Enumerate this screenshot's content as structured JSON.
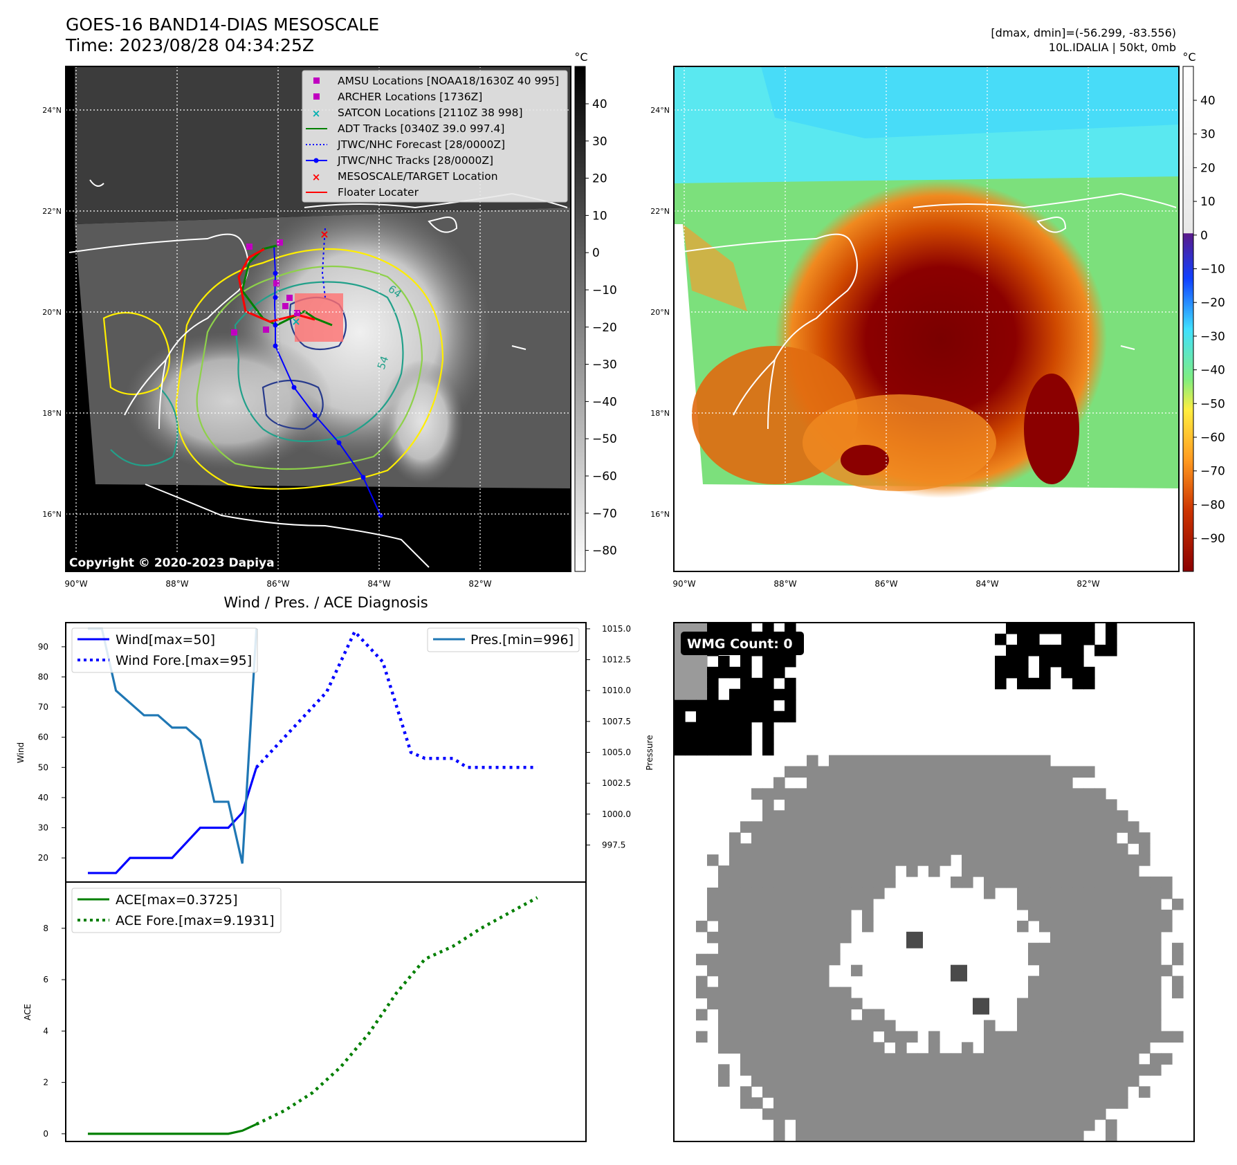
{
  "header": {
    "title": "GOES-16 BAND14-DIAS MESOSCALE",
    "time": "Time: 2023/08/28 04:34:25Z",
    "stats": "[dmax, dmin]=(-56.299, -83.556)",
    "storm": "10L.IDALIA | 50kt, 0mb"
  },
  "colors": {
    "amsu": "#c000c0",
    "archer": "#c000c0",
    "satcon": "#00b0b0",
    "adt": "#008000",
    "forecast": "#0000ff",
    "track": "#0000ff",
    "target": "#ff0000",
    "floater": "#ff0000",
    "wind": "#0000ff",
    "pressure": "#1f77b4",
    "ace": "#007f00"
  },
  "ir_panel": {
    "colorbar_unit": "°C",
    "colorbar_ticks": [
      40,
      30,
      20,
      10,
      0,
      -10,
      -20,
      -30,
      -40,
      -50,
      -60,
      -70,
      -80
    ],
    "lat_labels": [
      "24°N",
      "22°N",
      "20°N",
      "18°N",
      "16°N"
    ],
    "lon_labels": [
      "90°W",
      "88°W",
      "86°W",
      "84°W",
      "82°W"
    ],
    "copyright": "Copyright © 2020-2023 Dapiya",
    "contour_labels": [
      "64",
      "54"
    ],
    "legend": [
      {
        "label": "AMSU Locations [NOAA18/1630Z 40 995]",
        "marker": "square",
        "color_key": "amsu"
      },
      {
        "label": "ARCHER Locations [1736Z]",
        "marker": "square",
        "color_key": "archer"
      },
      {
        "label": "SATCON Locations [2110Z 38 998]",
        "marker": "x",
        "color_key": "satcon"
      },
      {
        "label": "ADT Tracks [0340Z 39.0 997.4]",
        "marker": "line",
        "color_key": "adt"
      },
      {
        "label": "JTWC/NHC Forecast [28/0000Z]",
        "marker": "dotted",
        "color_key": "forecast"
      },
      {
        "label": "JTWC/NHC Tracks [28/0000Z]",
        "marker": "line-dot",
        "color_key": "track"
      },
      {
        "label": "MESOSCALE/TARGET Location",
        "marker": "x",
        "color_key": "target"
      },
      {
        "label": "Floater Locater",
        "marker": "line",
        "color_key": "floater"
      }
    ]
  },
  "enhanced_panel": {
    "colorbar_unit": "°C",
    "colorbar_ticks": [
      40,
      30,
      20,
      10,
      0,
      -10,
      -20,
      -30,
      -40,
      -50,
      -60,
      -70,
      -80,
      -90
    ],
    "lat_labels": [
      "24°N",
      "22°N",
      "20°N",
      "18°N",
      "16°N"
    ],
    "lon_labels": [
      "90°W",
      "88°W",
      "86°W",
      "84°W",
      "82°W"
    ]
  },
  "wmg_panel": {
    "badge": "WMG Count: 0"
  },
  "chart_data": [
    {
      "type": "line",
      "title": "Wind / Pres. / ACE Diagnosis",
      "ylabel": "Wind",
      "y2label": "Pressure",
      "ylim": [
        12,
        98
      ],
      "y_ticks": [
        20,
        30,
        40,
        50,
        60,
        70,
        80,
        90
      ],
      "y2lim": [
        994.5,
        1015.5
      ],
      "y2_ticks": [
        "1015.0",
        "1012.5",
        "1010.0",
        "1007.5",
        "1005.0",
        "1002.5",
        "1000.0",
        "997.5"
      ],
      "legend_left": [
        "Wind[max=50]",
        "Wind Fore.[max=95]"
      ],
      "legend_right": [
        "Pres.[min=996]"
      ],
      "series": [
        {
          "name": "Wind[max=50]",
          "style": "solid",
          "color_key": "wind",
          "x": [
            0,
            1,
            2,
            3,
            4,
            5,
            6,
            7,
            8,
            9,
            10,
            11,
            12
          ],
          "y": [
            15,
            15,
            15,
            20,
            20,
            20,
            20,
            25,
            30,
            30,
            30,
            35,
            50
          ]
        },
        {
          "name": "Wind Fore.[max=95]",
          "style": "dotted",
          "color_key": "wind",
          "x": [
            12,
            13,
            14,
            15,
            16,
            17,
            18,
            19,
            20,
            21,
            22,
            23,
            24,
            25,
            26,
            27,
            28,
            29,
            30,
            31,
            32
          ],
          "y": [
            50,
            55,
            60,
            65,
            70,
            75,
            85,
            95,
            90,
            85,
            70,
            55,
            53,
            53,
            53,
            50,
            50,
            50,
            50,
            50,
            50
          ]
        },
        {
          "name": "Pres.[min=996]",
          "style": "solid",
          "color_key": "pressure",
          "axis": "right",
          "x": [
            0,
            1,
            2,
            3,
            4,
            5,
            6,
            7,
            8,
            9,
            10,
            11,
            12
          ],
          "y": [
            1015,
            1015,
            1010,
            1009,
            1008,
            1008,
            1007,
            1007,
            1006,
            1001,
            1001,
            996,
            1015
          ]
        }
      ]
    },
    {
      "type": "line",
      "ylabel": "ACE",
      "ylim": [
        -0.3,
        9.8
      ],
      "y_ticks": [
        0,
        2,
        4,
        6,
        8
      ],
      "legend": [
        "ACE[max=0.3725]",
        "ACE Fore.[max=9.1931]"
      ],
      "series": [
        {
          "name": "ACE[max=0.3725]",
          "style": "solid",
          "color_key": "ace",
          "x": [
            0,
            1,
            2,
            3,
            4,
            5,
            6,
            7,
            8,
            9,
            10,
            11,
            12
          ],
          "y": [
            0,
            0,
            0,
            0,
            0,
            0,
            0,
            0,
            0,
            0,
            0,
            0.12,
            0.3725
          ]
        },
        {
          "name": "ACE Fore.[max=9.1931]",
          "style": "dotted",
          "color_key": "ace",
          "x": [
            12,
            14,
            16,
            18,
            20,
            22,
            24,
            26,
            28,
            30,
            32
          ],
          "y": [
            0.3725,
            0.9,
            1.6,
            2.6,
            3.9,
            5.5,
            6.8,
            7.3,
            8.0,
            8.6,
            9.1931
          ]
        }
      ]
    }
  ]
}
